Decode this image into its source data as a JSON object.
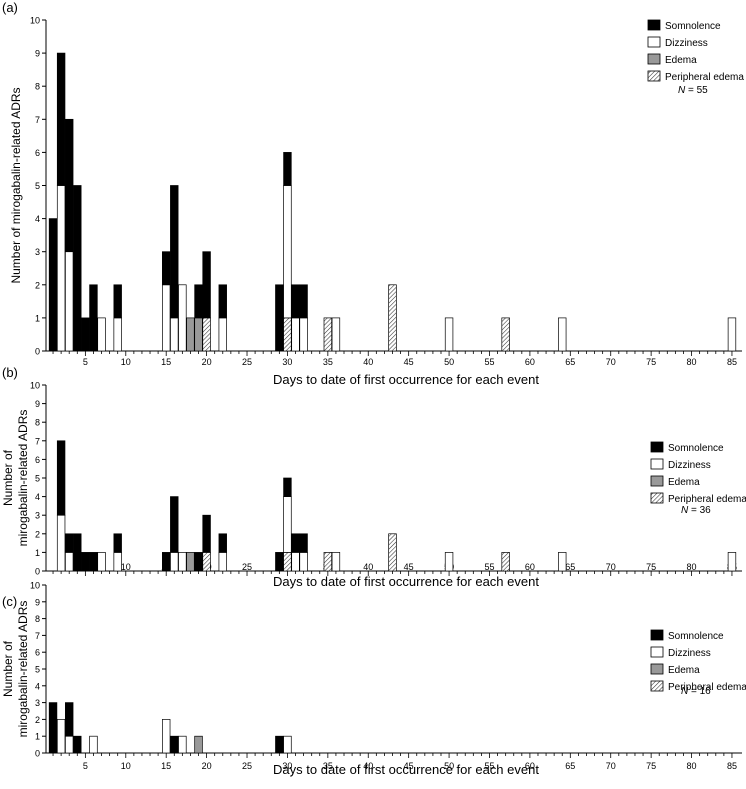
{
  "figure": {
    "legend_labels": [
      "Somnolence",
      "Dizziness",
      "Edema",
      "Peripheral edema"
    ],
    "n_prefix": "N",
    "colors": {
      "Somnolence": "#000000",
      "Dizziness": "#ffffff",
      "Edema": "#999999",
      "Peripheral edema": "hatch"
    }
  },
  "chart_data": [
    {
      "type": "bar",
      "stacked": true,
      "panel_label": "(a)",
      "ylabel": "Number of mirogabalin-related ADRs",
      "xlabel": "Days to date of first occurrence for each event",
      "ylim": [
        0,
        10
      ],
      "xlim": [
        1,
        85
      ],
      "xticks": [
        5,
        10,
        15,
        20,
        25,
        30,
        35,
        40,
        45,
        50,
        55,
        60,
        65,
        70,
        75,
        80,
        85
      ],
      "legend": [
        "Somnolence",
        "Dizziness",
        "Edema",
        "Peripheral edema"
      ],
      "n_label": "= 55",
      "bars": [
        {
          "day": 1,
          "Somnolence": 4
        },
        {
          "day": 2,
          "Dizziness": 5,
          "Somnolence": 4
        },
        {
          "day": 3,
          "Dizziness": 3,
          "Somnolence": 4
        },
        {
          "day": 4,
          "Somnolence": 5
        },
        {
          "day": 5,
          "Somnolence": 1
        },
        {
          "day": 6,
          "Somnolence": 2
        },
        {
          "day": 7,
          "Dizziness": 1
        },
        {
          "day": 9,
          "Dizziness": 1,
          "Somnolence": 1
        },
        {
          "day": 15,
          "Dizziness": 2,
          "Somnolence": 1
        },
        {
          "day": 16,
          "Dizziness": 1,
          "Somnolence": 4
        },
        {
          "day": 17,
          "Dizziness": 2
        },
        {
          "day": 18,
          "Edema": 1
        },
        {
          "day": 19,
          "Edema": 1,
          "Somnolence": 1
        },
        {
          "day": 20,
          "Peripheral edema": 1,
          "Somnolence": 2
        },
        {
          "day": 22,
          "Dizziness": 1,
          "Somnolence": 1
        },
        {
          "day": 29,
          "Somnolence": 2
        },
        {
          "day": 30,
          "Peripheral edema": 1,
          "Dizziness": 4,
          "Somnolence": 1
        },
        {
          "day": 31,
          "Dizziness": 1,
          "Somnolence": 1
        },
        {
          "day": 32,
          "Dizziness": 1,
          "Somnolence": 1
        },
        {
          "day": 35,
          "Peripheral edema": 1
        },
        {
          "day": 36,
          "Dizziness": 1
        },
        {
          "day": 43,
          "Peripheral edema": 2
        },
        {
          "day": 50,
          "Dizziness": 1
        },
        {
          "day": 57,
          "Peripheral edema": 1
        },
        {
          "day": 64,
          "Dizziness": 1
        },
        {
          "day": 85,
          "Dizziness": 1
        }
      ]
    },
    {
      "type": "bar",
      "stacked": true,
      "panel_label": "(b)",
      "ylabel": [
        "Number of",
        "mirogabalin-related ADRs"
      ],
      "xlabel": "Days to date of first occurrence for each event",
      "ylim": [
        0,
        10
      ],
      "xlim": [
        1,
        85
      ],
      "xticks": [
        5,
        10,
        15,
        20,
        25,
        30,
        35,
        40,
        45,
        50,
        55,
        60,
        65,
        70,
        75,
        80,
        85
      ],
      "legend": [
        "Somnolence",
        "Dizziness",
        "Edema",
        "Peripheral edema"
      ],
      "n_label": "= 36",
      "bars": [
        {
          "day": 2,
          "Dizziness": 3,
          "Somnolence": 4
        },
        {
          "day": 3,
          "Dizziness": 1,
          "Somnolence": 1
        },
        {
          "day": 4,
          "Somnolence": 2
        },
        {
          "day": 5,
          "Somnolence": 1
        },
        {
          "day": 6,
          "Somnolence": 1
        },
        {
          "day": 7,
          "Dizziness": 1
        },
        {
          "day": 9,
          "Dizziness": 1,
          "Somnolence": 1
        },
        {
          "day": 15,
          "Somnolence": 1
        },
        {
          "day": 16,
          "Dizziness": 1,
          "Somnolence": 3
        },
        {
          "day": 17,
          "Dizziness": 1
        },
        {
          "day": 18,
          "Edema": 1
        },
        {
          "day": 19,
          "Somnolence": 1
        },
        {
          "day": 20,
          "Peripheral edema": 1,
          "Somnolence": 2
        },
        {
          "day": 22,
          "Dizziness": 1,
          "Somnolence": 1
        },
        {
          "day": 29,
          "Somnolence": 1
        },
        {
          "day": 30,
          "Peripheral edema": 1,
          "Dizziness": 3,
          "Somnolence": 1
        },
        {
          "day": 31,
          "Dizziness": 1,
          "Somnolence": 1
        },
        {
          "day": 32,
          "Dizziness": 1,
          "Somnolence": 1
        },
        {
          "day": 35,
          "Peripheral edema": 1
        },
        {
          "day": 36,
          "Dizziness": 1
        },
        {
          "day": 43,
          "Peripheral edema": 2
        },
        {
          "day": 50,
          "Dizziness": 1
        },
        {
          "day": 57,
          "Peripheral edema": 1
        },
        {
          "day": 64,
          "Dizziness": 1
        },
        {
          "day": 85,
          "Dizziness": 1
        }
      ]
    },
    {
      "type": "bar",
      "stacked": true,
      "panel_label": "(c)",
      "ylabel": [
        "Number of",
        "mirogabalin-related ADRs"
      ],
      "xlabel": "Days to date of first occurrence for each event",
      "ylim": [
        0,
        10
      ],
      "xlim": [
        1,
        85
      ],
      "xticks": [
        5,
        10,
        15,
        20,
        25,
        30,
        35,
        40,
        45,
        50,
        55,
        60,
        65,
        70,
        75,
        80,
        85
      ],
      "legend": [
        "Somnolence",
        "Dizziness",
        "Edema",
        "Peripheral edema"
      ],
      "n_label": "= 16",
      "bars": [
        {
          "day": 1,
          "Somnolence": 3
        },
        {
          "day": 2,
          "Dizziness": 2
        },
        {
          "day": 3,
          "Dizziness": 1,
          "Somnolence": 2
        },
        {
          "day": 4,
          "Somnolence": 1
        },
        {
          "day": 6,
          "Dizziness": 1
        },
        {
          "day": 15,
          "Dizziness": 2
        },
        {
          "day": 16,
          "Somnolence": 1
        },
        {
          "day": 17,
          "Dizziness": 1
        },
        {
          "day": 19,
          "Edema": 1
        },
        {
          "day": 29,
          "Somnolence": 1
        },
        {
          "day": 30,
          "Dizziness": 1
        }
      ]
    }
  ]
}
